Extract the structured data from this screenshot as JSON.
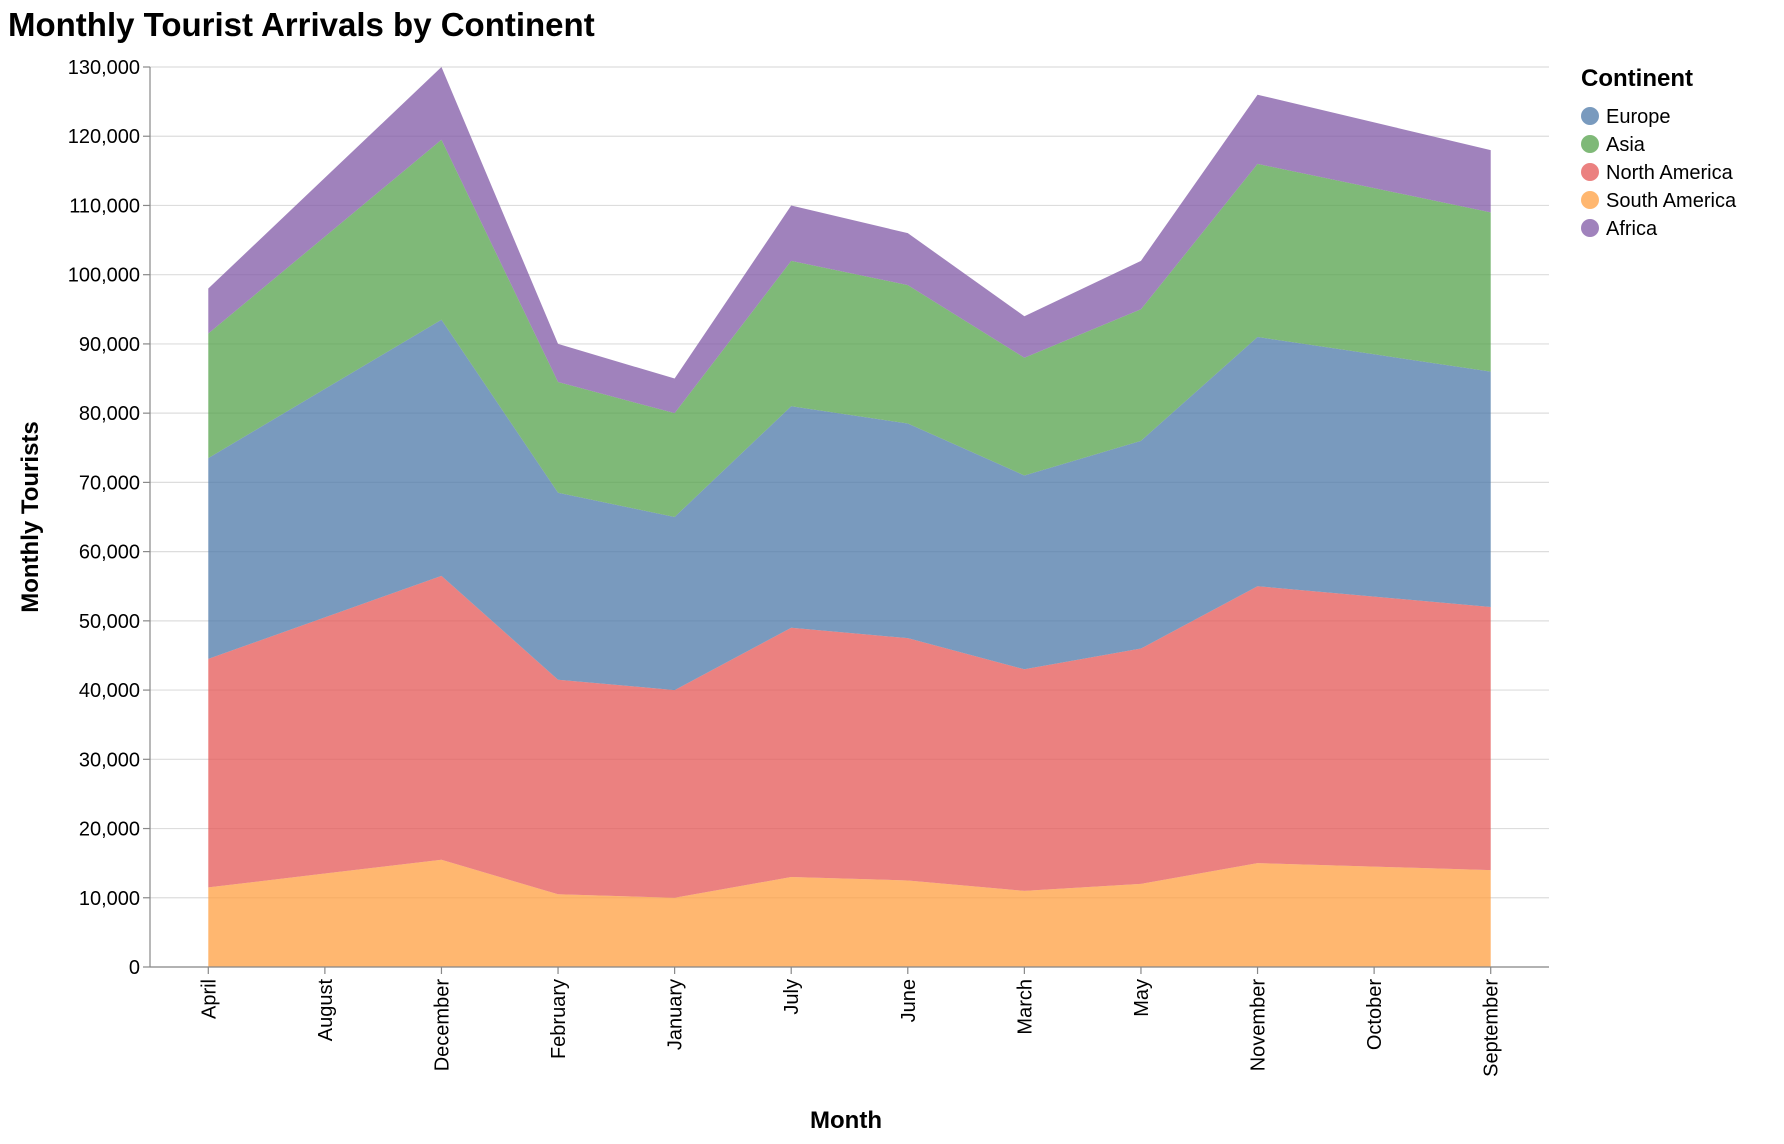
{
  "colors": {
    "Europe": "#4c78a8",
    "Asia": "#54a24b",
    "North America": "#e45756",
    "South America": "#ff9f40",
    "Africa": "#8058a5"
  },
  "chart_data": {
    "type": "area",
    "stacked": true,
    "title": "Monthly Tourist Arrivals by Continent",
    "xlabel": "Month",
    "ylabel": "Monthly Tourists",
    "ylim": [
      0,
      130000
    ],
    "y_ticks": [
      0,
      10000,
      20000,
      30000,
      40000,
      50000,
      60000,
      70000,
      80000,
      90000,
      100000,
      110000,
      120000,
      130000
    ],
    "y_tick_labels": [
      "0",
      "10,000",
      "20,000",
      "30,000",
      "40,000",
      "50,000",
      "60,000",
      "70,000",
      "80,000",
      "90,000",
      "100,000",
      "110,000",
      "120,000",
      "130,000"
    ],
    "grid": true,
    "legend": {
      "title": "Continent",
      "position": "top-right"
    },
    "categories": [
      "April",
      "August",
      "December",
      "February",
      "January",
      "July",
      "June",
      "March",
      "May",
      "November",
      "October",
      "September"
    ],
    "stack_order": [
      "South America",
      "North America",
      "Europe",
      "Asia",
      "Africa"
    ],
    "series": [
      {
        "name": "Europe",
        "values": [
          29000,
          33000,
          37000,
          27000,
          25000,
          32000,
          31000,
          28000,
          30000,
          36000,
          35000,
          34000
        ]
      },
      {
        "name": "Asia",
        "values": [
          18000,
          22000,
          26000,
          16000,
          15000,
          21000,
          20000,
          17000,
          19000,
          25000,
          24000,
          23000
        ]
      },
      {
        "name": "North America",
        "values": [
          33000,
          37000,
          41000,
          31000,
          30000,
          36000,
          35000,
          32000,
          34000,
          40000,
          39000,
          38000
        ]
      },
      {
        "name": "South America",
        "values": [
          11500,
          13500,
          15500,
          10500,
          10000,
          13000,
          12500,
          11000,
          12000,
          15000,
          14500,
          14000
        ]
      },
      {
        "name": "Africa",
        "values": [
          6500,
          8500,
          10500,
          5500,
          5000,
          8000,
          7500,
          6000,
          7000,
          10000,
          9500,
          9000
        ]
      }
    ]
  }
}
